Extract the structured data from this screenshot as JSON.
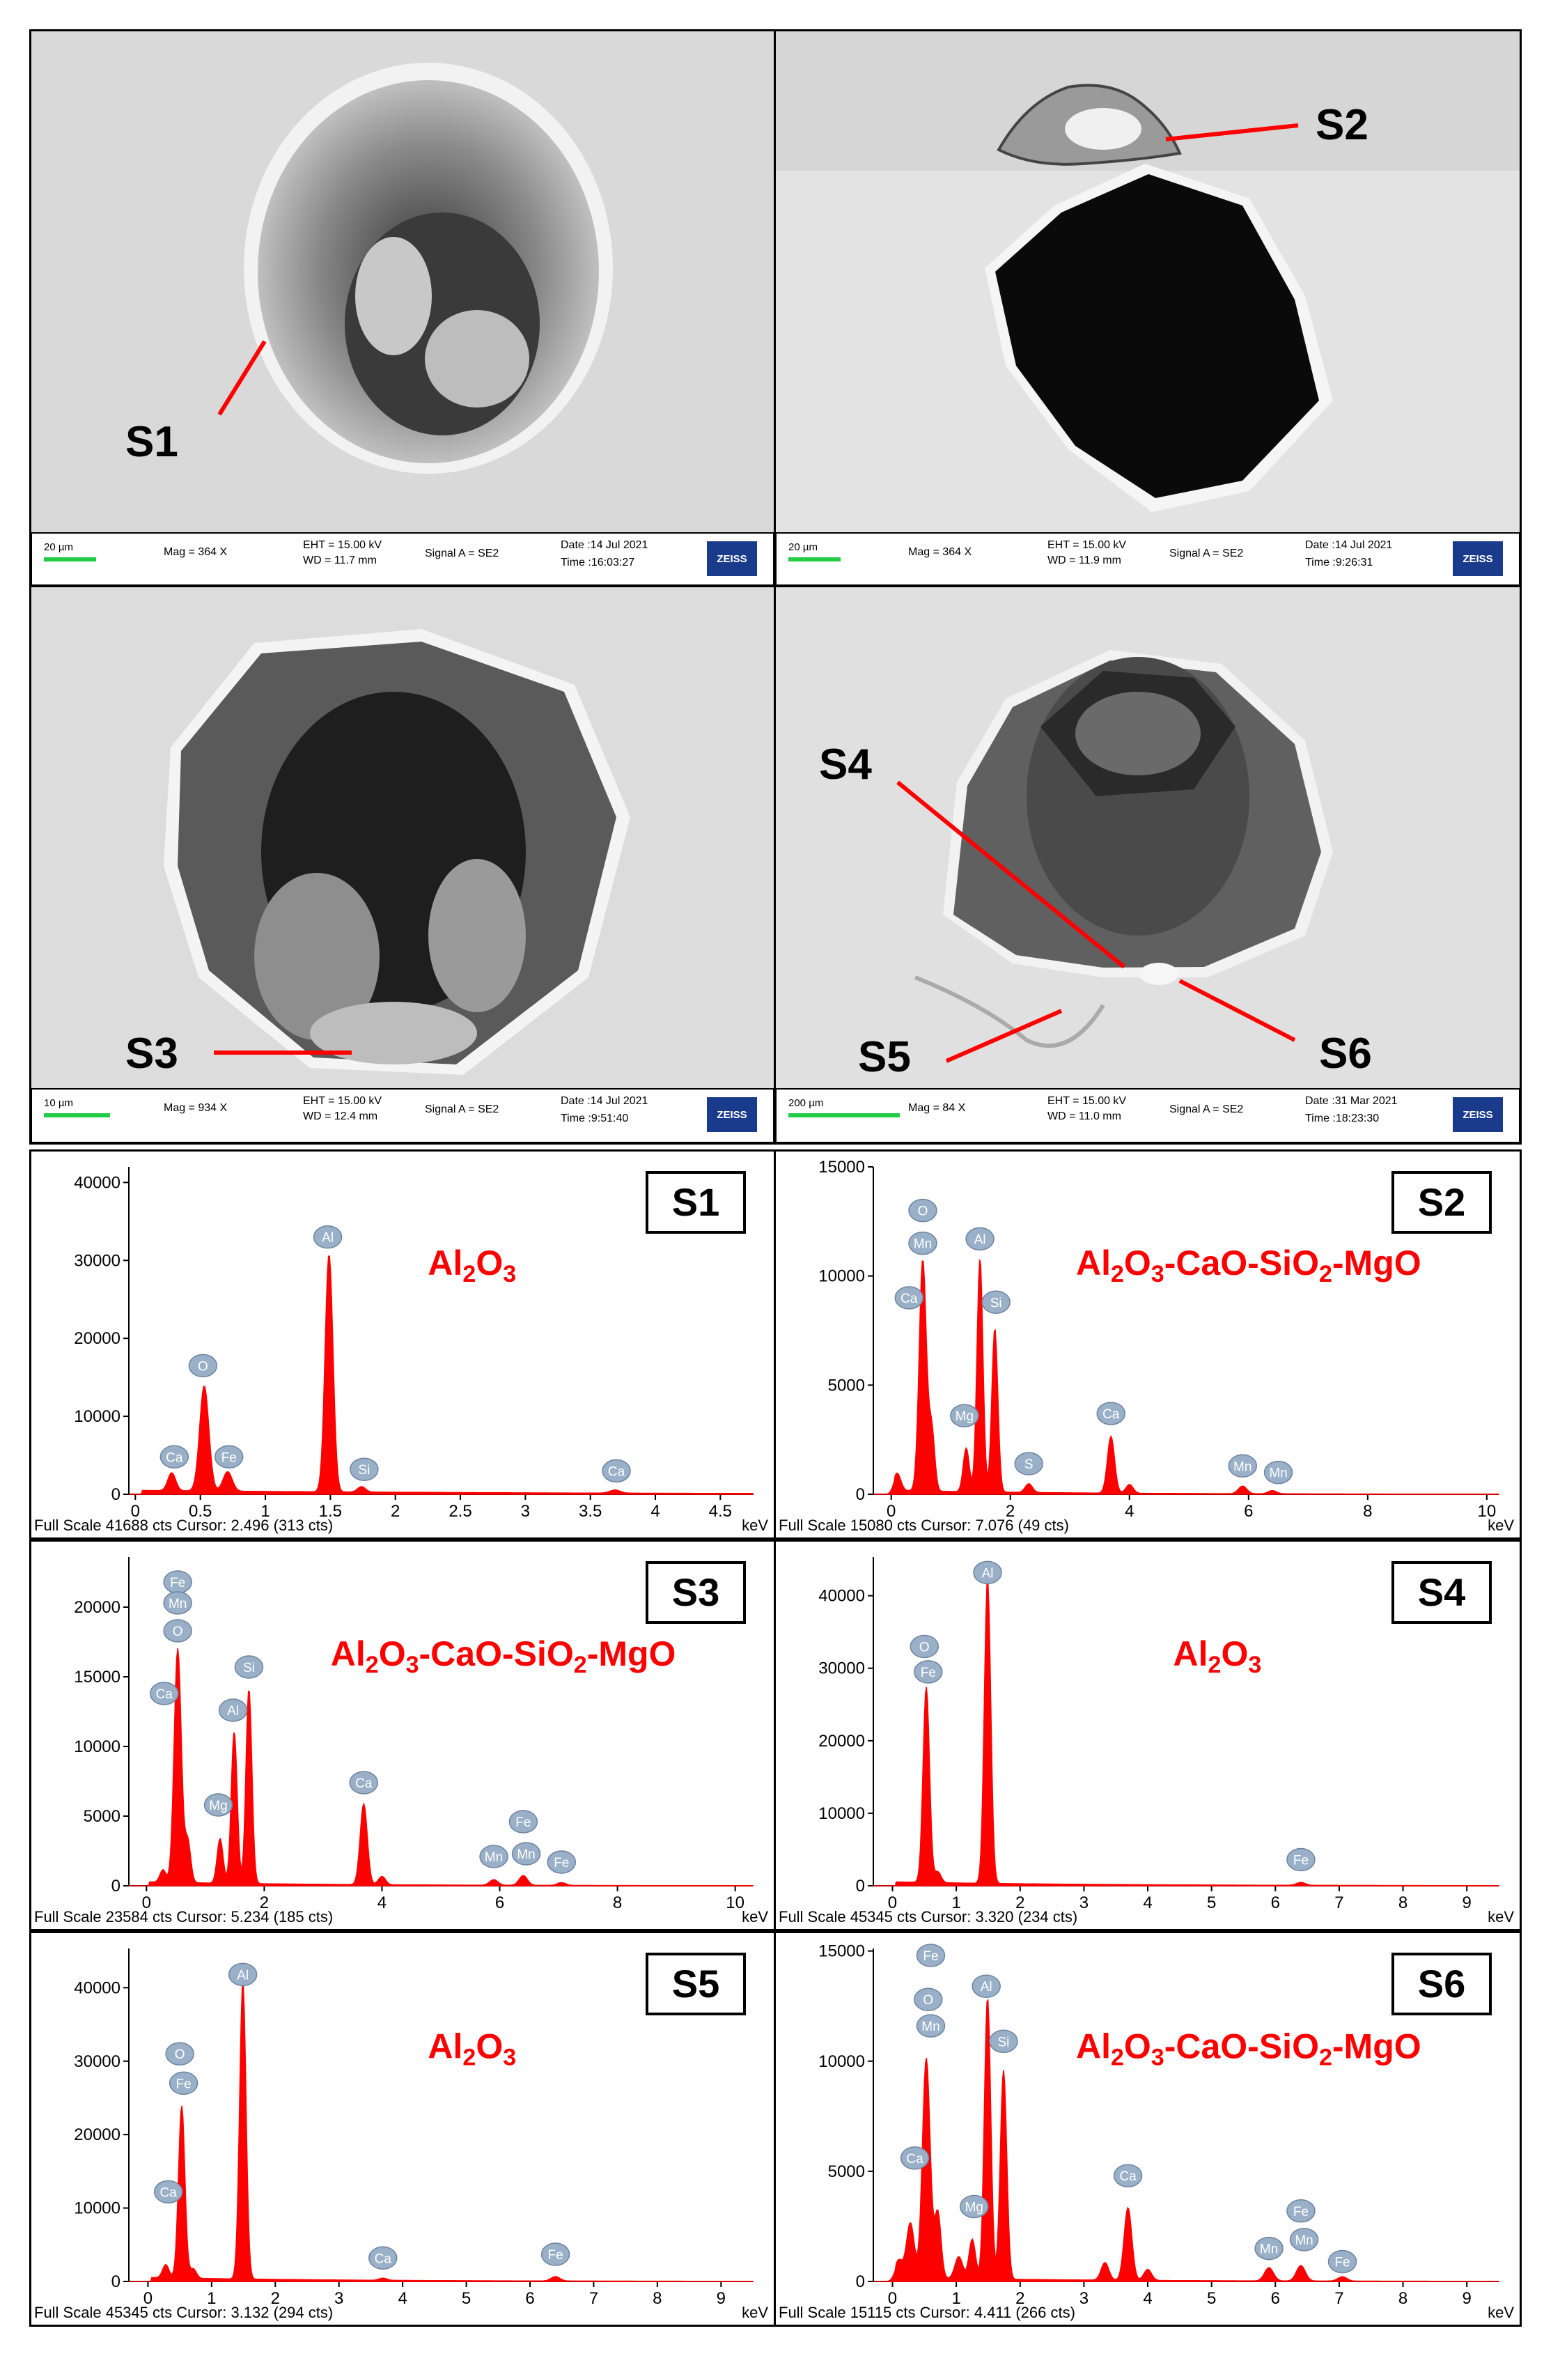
{
  "sem_panels": [
    {
      "labels": [
        "S1"
      ],
      "scale": "20 µm",
      "mag": "Mag =  364 X",
      "eht": "EHT = 15.00 kV",
      "wd": "WD = 11.7 mm",
      "signal": "Signal A = SE2",
      "date": "Date :14 Jul 2021",
      "time": "Time :16:03:27",
      "logo": "ZEISS"
    },
    {
      "labels": [
        "S2"
      ],
      "scale": "20 µm",
      "mag": "Mag =  364 X",
      "eht": "EHT = 15.00 kV",
      "wd": "WD = 11.9 mm",
      "signal": "Signal A = SE2",
      "date": "Date :14 Jul 2021",
      "time": "Time :9:26:31",
      "logo": "ZEISS"
    },
    {
      "labels": [
        "S3"
      ],
      "scale": "10 µm",
      "mag": "Mag =  934 X",
      "eht": "EHT = 15.00 kV",
      "wd": "WD = 12.4 mm",
      "signal": "Signal A = SE2",
      "date": "Date :14 Jul 2021",
      "time": "Time :9:51:40",
      "logo": "ZEISS"
    },
    {
      "labels": [
        "S4",
        "S5",
        "S6"
      ],
      "scale": "200 µm",
      "mag": "Mag =   84 X",
      "eht": "EHT = 15.00 kV",
      "wd": "WD = 11.0 mm",
      "signal": "Signal A = SE2",
      "date": "Date :31 Mar 2021",
      "time": "Time :18:23:30",
      "logo": "ZEISS"
    }
  ],
  "chart_data": [
    {
      "type": "area",
      "label": "S1",
      "phase": "Al2O3",
      "footer": "Full Scale 41688 cts Cursor: 2.496  (313 cts)",
      "xlabel": "keV",
      "xlim": [
        -0.05,
        4.75
      ],
      "ylim": [
        0,
        42000
      ],
      "x_ticks": [
        0,
        0.5,
        1,
        1.5,
        2,
        2.5,
        3,
        3.5,
        4,
        4.5
      ],
      "x_tick_labels": [
        "0",
        "0.5",
        "1",
        "1.5",
        "2",
        "2.5",
        "3",
        "3.5",
        "4",
        "4.5"
      ],
      "y_ticks": [
        0,
        10000,
        20000,
        30000,
        40000
      ],
      "peaks": [
        {
          "x": 0.28,
          "y": 2300,
          "w": 0.03
        },
        {
          "x": 0.53,
          "y": 13500,
          "w": 0.035
        },
        {
          "x": 0.71,
          "y": 2500,
          "w": 0.035
        },
        {
          "x": 1.49,
          "y": 30500,
          "w": 0.03
        },
        {
          "x": 1.74,
          "y": 700,
          "w": 0.03
        },
        {
          "x": 3.69,
          "y": 400,
          "w": 0.04
        }
      ],
      "element_tags": [
        {
          "el": "Ca",
          "x": 0.3,
          "y": 4800
        },
        {
          "el": "O",
          "x": 0.52,
          "y": 16500
        },
        {
          "el": "Fe",
          "x": 0.72,
          "y": 4800
        },
        {
          "el": "Al",
          "x": 1.48,
          "y": 33000
        },
        {
          "el": "Si",
          "x": 1.76,
          "y": 3200
        },
        {
          "el": "Ca",
          "x": 3.7,
          "y": 3000
        }
      ]
    },
    {
      "type": "area",
      "label": "S2",
      "phase": "Al2O3-CaO-SiO2-MgO",
      "footer": "Full Scale 15080 cts Cursor: 7.076  (49 cts)",
      "xlabel": "keV",
      "xlim": [
        -0.3,
        10.2
      ],
      "ylim": [
        0,
        15000
      ],
      "x_ticks": [
        0,
        2,
        4,
        6,
        8,
        10
      ],
      "x_tick_labels": [
        "0",
        "2",
        "4",
        "6",
        "8",
        "10"
      ],
      "y_ticks": [
        0,
        5000,
        10000,
        15000
      ],
      "peaks": [
        {
          "x": 0.1,
          "y": 800,
          "w": 0.06
        },
        {
          "x": 0.53,
          "y": 10600,
          "w": 0.06
        },
        {
          "x": 0.68,
          "y": 2800,
          "w": 0.05
        },
        {
          "x": 1.26,
          "y": 2000,
          "w": 0.05
        },
        {
          "x": 1.49,
          "y": 10700,
          "w": 0.05
        },
        {
          "x": 1.74,
          "y": 7500,
          "w": 0.05
        },
        {
          "x": 2.31,
          "y": 400,
          "w": 0.06
        },
        {
          "x": 3.69,
          "y": 2600,
          "w": 0.06
        },
        {
          "x": 4.0,
          "y": 400,
          "w": 0.06
        },
        {
          "x": 5.9,
          "y": 350,
          "w": 0.07
        },
        {
          "x": 6.4,
          "y": 150,
          "w": 0.07
        }
      ],
      "element_tags": [
        {
          "el": "O",
          "x": 0.53,
          "y": 13000
        },
        {
          "el": "Mn",
          "x": 0.53,
          "y": 11500
        },
        {
          "el": "Ca",
          "x": 0.3,
          "y": 9000
        },
        {
          "el": "Al",
          "x": 1.49,
          "y": 11700
        },
        {
          "el": "Si",
          "x": 1.76,
          "y": 8800
        },
        {
          "el": "Mg",
          "x": 1.23,
          "y": 3600
        },
        {
          "el": "S",
          "x": 2.31,
          "y": 1400
        },
        {
          "el": "Ca",
          "x": 3.69,
          "y": 3700
        },
        {
          "el": "Mn",
          "x": 5.9,
          "y": 1300
        },
        {
          "el": "Mn",
          "x": 6.5,
          "y": 1000
        }
      ]
    },
    {
      "type": "area",
      "label": "S3",
      "phase": "Al2O3-CaO-SiO2-MgO",
      "footer": "Full Scale 23584 cts Cursor: 5.234  (185 cts)",
      "xlabel": "keV",
      "xlim": [
        -0.3,
        10.3
      ],
      "ylim": [
        0,
        23600
      ],
      "x_ticks": [
        0,
        2,
        4,
        6,
        8,
        10
      ],
      "x_tick_labels": [
        "0",
        "2",
        "4",
        "6",
        "8",
        "10"
      ],
      "y_ticks": [
        0,
        5000,
        10000,
        15000,
        20000
      ],
      "peaks": [
        {
          "x": 0.28,
          "y": 900,
          "w": 0.05
        },
        {
          "x": 0.53,
          "y": 16800,
          "w": 0.06
        },
        {
          "x": 0.7,
          "y": 3000,
          "w": 0.05
        },
        {
          "x": 1.25,
          "y": 3200,
          "w": 0.05
        },
        {
          "x": 1.49,
          "y": 10900,
          "w": 0.05
        },
        {
          "x": 1.74,
          "y": 14000,
          "w": 0.05
        },
        {
          "x": 3.69,
          "y": 5800,
          "w": 0.06
        },
        {
          "x": 4.0,
          "y": 600,
          "w": 0.06
        },
        {
          "x": 5.9,
          "y": 400,
          "w": 0.07
        },
        {
          "x": 6.4,
          "y": 700,
          "w": 0.07
        },
        {
          "x": 7.05,
          "y": 200,
          "w": 0.07
        }
      ],
      "element_tags": [
        {
          "el": "Fe",
          "x": 0.53,
          "y": 21800
        },
        {
          "el": "Mn",
          "x": 0.53,
          "y": 20300
        },
        {
          "el": "O",
          "x": 0.53,
          "y": 18300
        },
        {
          "el": "Ca",
          "x": 0.3,
          "y": 13800
        },
        {
          "el": "Al",
          "x": 1.47,
          "y": 12600
        },
        {
          "el": "Si",
          "x": 1.74,
          "y": 15700
        },
        {
          "el": "Mg",
          "x": 1.22,
          "y": 5800
        },
        {
          "el": "Ca",
          "x": 3.69,
          "y": 7400
        },
        {
          "el": "Mn",
          "x": 5.9,
          "y": 2100
        },
        {
          "el": "Fe",
          "x": 6.4,
          "y": 4600
        },
        {
          "el": "Mn",
          "x": 6.45,
          "y": 2300
        },
        {
          "el": "Fe",
          "x": 7.05,
          "y": 1700
        }
      ]
    },
    {
      "type": "area",
      "label": "S4",
      "phase": "Al2O3",
      "footer": "Full Scale 45345 cts Cursor: 3.320  (234 cts)",
      "xlabel": "keV",
      "xlim": [
        -0.3,
        9.5
      ],
      "ylim": [
        0,
        45345
      ],
      "x_ticks": [
        0,
        1,
        2,
        3,
        4,
        5,
        6,
        7,
        8,
        9
      ],
      "x_tick_labels": [
        "0",
        "1",
        "2",
        "3",
        "4",
        "5",
        "6",
        "7",
        "8",
        "9"
      ],
      "y_ticks": [
        0,
        10000,
        20000,
        30000,
        40000
      ],
      "peaks": [
        {
          "x": 0.53,
          "y": 27000,
          "w": 0.05
        },
        {
          "x": 0.71,
          "y": 1500,
          "w": 0.05
        },
        {
          "x": 1.49,
          "y": 42000,
          "w": 0.05
        },
        {
          "x": 6.4,
          "y": 400,
          "w": 0.07
        }
      ],
      "element_tags": [
        {
          "el": "O",
          "x": 0.5,
          "y": 33000
        },
        {
          "el": "Fe",
          "x": 0.56,
          "y": 29500
        },
        {
          "el": "Al",
          "x": 1.49,
          "y": 43200
        },
        {
          "el": "Fe",
          "x": 6.4,
          "y": 3600
        }
      ]
    },
    {
      "type": "area",
      "label": "S5",
      "phase": "Al2O3",
      "footer": "Full Scale 45345 cts Cursor: 3.132  (294 cts)",
      "xlabel": "keV",
      "xlim": [
        -0.3,
        9.5
      ],
      "ylim": [
        0,
        45345
      ],
      "x_ticks": [
        0,
        1,
        2,
        3,
        4,
        5,
        6,
        7,
        8,
        9
      ],
      "x_tick_labels": [
        "0",
        "1",
        "2",
        "3",
        "4",
        "5",
        "6",
        "7",
        "8",
        "9"
      ],
      "y_ticks": [
        0,
        10000,
        20000,
        30000,
        40000
      ],
      "peaks": [
        {
          "x": 0.28,
          "y": 1800,
          "w": 0.05
        },
        {
          "x": 0.53,
          "y": 23500,
          "w": 0.05
        },
        {
          "x": 0.71,
          "y": 1300,
          "w": 0.05
        },
        {
          "x": 1.49,
          "y": 40500,
          "w": 0.05
        },
        {
          "x": 3.69,
          "y": 300,
          "w": 0.06
        },
        {
          "x": 6.4,
          "y": 600,
          "w": 0.07
        }
      ],
      "element_tags": [
        {
          "el": "O",
          "x": 0.5,
          "y": 31000
        },
        {
          "el": "Fe",
          "x": 0.56,
          "y": 27000
        },
        {
          "el": "Ca",
          "x": 0.32,
          "y": 12200
        },
        {
          "el": "Al",
          "x": 1.49,
          "y": 41800
        },
        {
          "el": "Ca",
          "x": 3.69,
          "y": 3200
        },
        {
          "el": "Fe",
          "x": 6.4,
          "y": 3700
        }
      ]
    },
    {
      "type": "area",
      "label": "S6",
      "phase": "Al2O3-CaO-SiO2-MgO",
      "footer": "Full Scale 15115 cts Cursor: 4.411  (266 cts)",
      "xlabel": "keV",
      "xlim": [
        -0.3,
        9.5
      ],
      "ylim": [
        0,
        15115
      ],
      "x_ticks": [
        0,
        1,
        2,
        3,
        4,
        5,
        6,
        7,
        8,
        9
      ],
      "x_tick_labels": [
        "0",
        "1",
        "2",
        "3",
        "4",
        "5",
        "6",
        "7",
        "8",
        "9"
      ],
      "y_ticks": [
        0,
        5000,
        10000,
        15000
      ],
      "peaks": [
        {
          "x": 0.1,
          "y": 800,
          "w": 0.06
        },
        {
          "x": 0.28,
          "y": 2500,
          "w": 0.06
        },
        {
          "x": 0.53,
          "y": 10000,
          "w": 0.06
        },
        {
          "x": 0.71,
          "y": 3000,
          "w": 0.05
        },
        {
          "x": 1.04,
          "y": 1000,
          "w": 0.06
        },
        {
          "x": 1.25,
          "y": 1800,
          "w": 0.05
        },
        {
          "x": 1.49,
          "y": 12800,
          "w": 0.05
        },
        {
          "x": 1.74,
          "y": 9500,
          "w": 0.05
        },
        {
          "x": 3.33,
          "y": 800,
          "w": 0.06
        },
        {
          "x": 3.69,
          "y": 3300,
          "w": 0.06
        },
        {
          "x": 4.0,
          "y": 500,
          "w": 0.06
        },
        {
          "x": 5.9,
          "y": 600,
          "w": 0.07
        },
        {
          "x": 6.4,
          "y": 700,
          "w": 0.07
        },
        {
          "x": 7.05,
          "y": 200,
          "w": 0.07
        }
      ],
      "element_tags": [
        {
          "el": "Fe",
          "x": 0.6,
          "y": 14800
        },
        {
          "el": "O",
          "x": 0.56,
          "y": 12800
        },
        {
          "el": "Mn",
          "x": 0.6,
          "y": 11600
        },
        {
          "el": "Ca",
          "x": 0.35,
          "y": 5600
        },
        {
          "el": "Al",
          "x": 1.47,
          "y": 13400
        },
        {
          "el": "Si",
          "x": 1.74,
          "y": 10900
        },
        {
          "el": "Mg",
          "x": 1.28,
          "y": 3400
        },
        {
          "el": "Ca",
          "x": 3.69,
          "y": 4800
        },
        {
          "el": "Mn",
          "x": 5.9,
          "y": 1500
        },
        {
          "el": "Fe",
          "x": 6.4,
          "y": 3200
        },
        {
          "el": "Mn",
          "x": 6.45,
          "y": 1900
        },
        {
          "el": "Fe",
          "x": 7.05,
          "y": 900
        }
      ]
    }
  ],
  "colors": {
    "spectrum_red": "#ff0000",
    "tag_bubble": "#9ab0c8",
    "sem_background": "#d8d8d8",
    "scale_bar": "#22cc44",
    "zeiss_blue": "#1a3b8c"
  }
}
